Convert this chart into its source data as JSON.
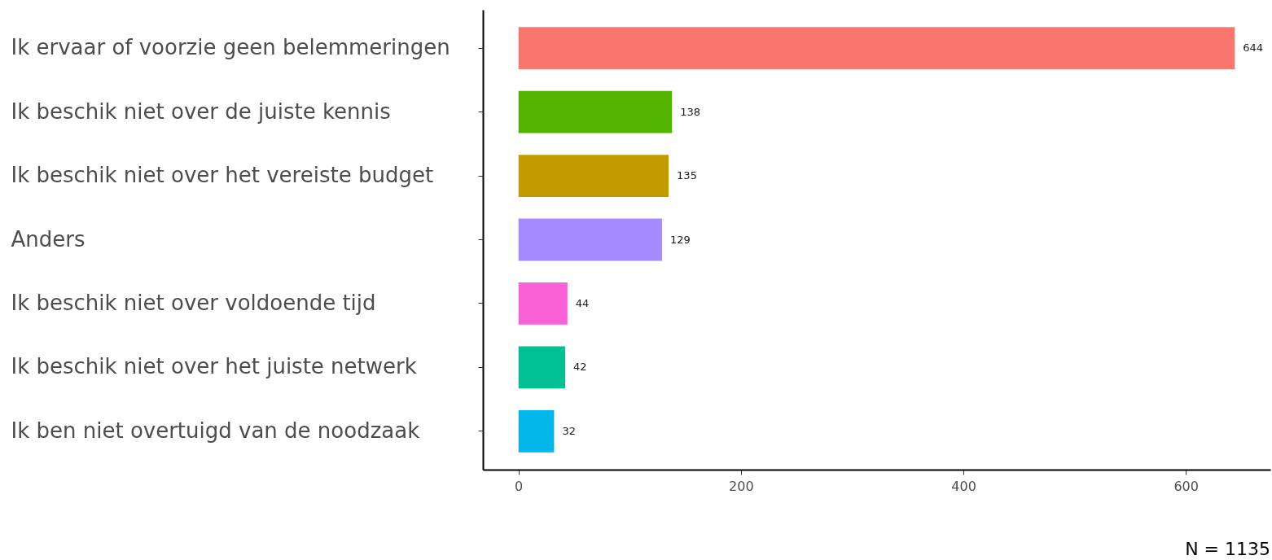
{
  "chart_data": {
    "type": "bar",
    "orientation": "horizontal",
    "categories": [
      "Ik ervaar of voorzie geen belemmeringen",
      "Ik beschik niet over de juiste kennis",
      "Ik beschik niet over het vereiste budget",
      "Anders",
      "Ik beschik niet over voldoende tijd",
      "Ik beschik niet over het juiste netwerk",
      "Ik ben niet overtuigd van de noodzaak"
    ],
    "values": [
      644,
      138,
      135,
      129,
      44,
      42,
      32
    ],
    "colors": [
      "#f8766d",
      "#53b400",
      "#c49a00",
      "#a58aff",
      "#fb61d7",
      "#00c094",
      "#00b6eb"
    ],
    "xlim": [
      -32,
      676
    ],
    "xticks": [
      0,
      200,
      400,
      600
    ],
    "data_labels": true,
    "annotations": [
      "N = 1135"
    ]
  }
}
